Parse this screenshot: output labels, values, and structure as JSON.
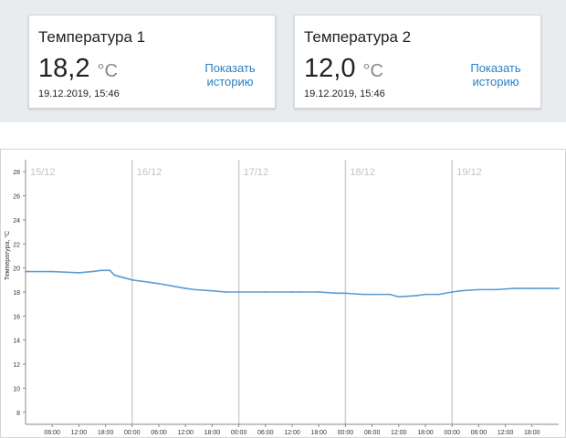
{
  "sensors": [
    {
      "title": "Температура 1",
      "value": "18,2",
      "unit": "°C",
      "timestamp": "19.12.2019, 15:46",
      "history_link": "Показать историю"
    },
    {
      "title": "Температура 2",
      "value": "12,0",
      "unit": "°C",
      "timestamp": "19.12.2019, 15:46",
      "history_link": "Показать историю"
    }
  ],
  "colors": {
    "line": "#5b9bd5",
    "accent_link": "#2a7fc1",
    "panel_bg": "#e9ecef"
  },
  "chart_data": {
    "type": "line",
    "ylabel": "Температура, °C",
    "ylim": [
      7,
      29
    ],
    "yticks": [
      8,
      10,
      12,
      14,
      16,
      18,
      20,
      22,
      24,
      26,
      28
    ],
    "xlim": [
      0,
      120
    ],
    "day_labels": [
      {
        "x": 0,
        "label": "15/12"
      },
      {
        "x": 24,
        "label": "16/12"
      },
      {
        "x": 48,
        "label": "17/12"
      },
      {
        "x": 72,
        "label": "18/12"
      },
      {
        "x": 96,
        "label": "19/12"
      }
    ],
    "xticks": [
      {
        "x": 6,
        "label": "06:00"
      },
      {
        "x": 12,
        "label": "12:00"
      },
      {
        "x": 18,
        "label": "18:00"
      },
      {
        "x": 24,
        "label": "00:00"
      },
      {
        "x": 30,
        "label": "06:00"
      },
      {
        "x": 36,
        "label": "12:00"
      },
      {
        "x": 42,
        "label": "18:00"
      },
      {
        "x": 48,
        "label": "00:00"
      },
      {
        "x": 54,
        "label": "06:00"
      },
      {
        "x": 60,
        "label": "12:00"
      },
      {
        "x": 66,
        "label": "18:00"
      },
      {
        "x": 72,
        "label": "00:00"
      },
      {
        "x": 78,
        "label": "06:00"
      },
      {
        "x": 84,
        "label": "12:00"
      },
      {
        "x": 90,
        "label": "18:00"
      },
      {
        "x": 96,
        "label": "00:00"
      },
      {
        "x": 102,
        "label": "06:00"
      },
      {
        "x": 108,
        "label": "12:00"
      },
      {
        "x": 114,
        "label": "18:00"
      }
    ],
    "grid": "day-lines",
    "series": [
      {
        "x": [
          0,
          6,
          12,
          15,
          17,
          19,
          20,
          22,
          24,
          26,
          28,
          30,
          33,
          36,
          38,
          42,
          45,
          48,
          54,
          60,
          62,
          66,
          70,
          72,
          76,
          78,
          82,
          84,
          88,
          90,
          93,
          96,
          98,
          102,
          106,
          110,
          114,
          118,
          120
        ],
        "y": [
          19.7,
          19.7,
          19.6,
          19.7,
          19.8,
          19.8,
          19.4,
          19.2,
          19.0,
          18.9,
          18.8,
          18.7,
          18.5,
          18.3,
          18.2,
          18.1,
          18.0,
          18.0,
          18.0,
          18.0,
          18.0,
          18.0,
          17.9,
          17.9,
          17.8,
          17.8,
          17.8,
          17.6,
          17.7,
          17.8,
          17.8,
          18.0,
          18.1,
          18.2,
          18.2,
          18.3,
          18.3,
          18.3,
          18.3
        ]
      }
    ]
  }
}
